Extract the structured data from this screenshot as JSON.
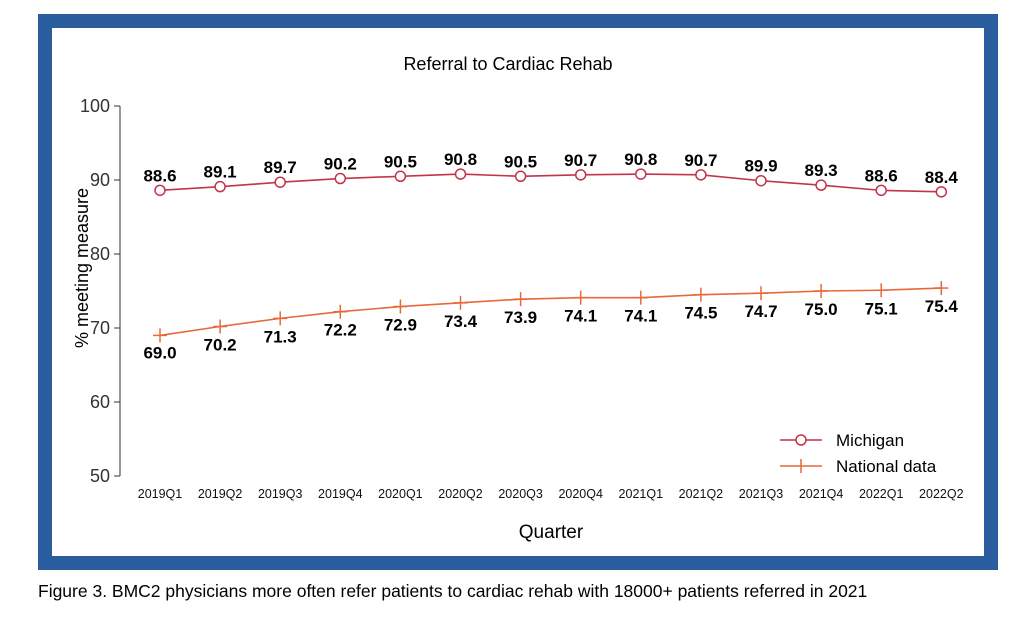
{
  "chart_data": {
    "type": "line",
    "title": "Referral to Cardiac Rehab",
    "xlabel": "Quarter",
    "ylabel": "% meeting measure",
    "ylim": [
      50,
      100
    ],
    "yticks": [
      50,
      60,
      70,
      80,
      90,
      100
    ],
    "categories": [
      "2019Q1",
      "2019Q2",
      "2019Q3",
      "2019Q4",
      "2020Q1",
      "2020Q2",
      "2020Q3",
      "2020Q4",
      "2021Q1",
      "2021Q2",
      "2021Q3",
      "2021Q4",
      "2022Q1",
      "2022Q2"
    ],
    "series": [
      {
        "name": "Michigan",
        "color": "#c0354a",
        "marker": "circle",
        "values": [
          88.6,
          89.1,
          89.7,
          90.2,
          90.5,
          90.8,
          90.5,
          90.7,
          90.8,
          90.7,
          89.9,
          89.3,
          88.6,
          88.4
        ],
        "labels": [
          "88.6",
          "89.1",
          "89.7",
          "90.2",
          "90.5",
          "90.8",
          "90.5",
          "90.7",
          "90.8",
          "90.7",
          "89.9",
          "89.3",
          "88.6",
          "88.4"
        ]
      },
      {
        "name": "National data",
        "color": "#e8683a",
        "marker": "plus",
        "values": [
          69.0,
          70.2,
          71.3,
          72.2,
          72.9,
          73.4,
          73.9,
          74.1,
          74.1,
          74.5,
          74.7,
          75.0,
          75.1,
          75.4
        ],
        "labels": [
          "69.0",
          "70.2",
          "71.3",
          "72.2",
          "72.9",
          "73.4",
          "73.9",
          "74.1",
          "74.1",
          "74.5",
          "74.7",
          "75.0",
          "75.1",
          "75.4"
        ]
      }
    ],
    "legend": {
      "position": "bottom-right"
    },
    "grid": false
  },
  "caption": "Figure 3. BMC2 physicians more often refer patients to cardiac rehab with 18000+ patients referred in 2021"
}
